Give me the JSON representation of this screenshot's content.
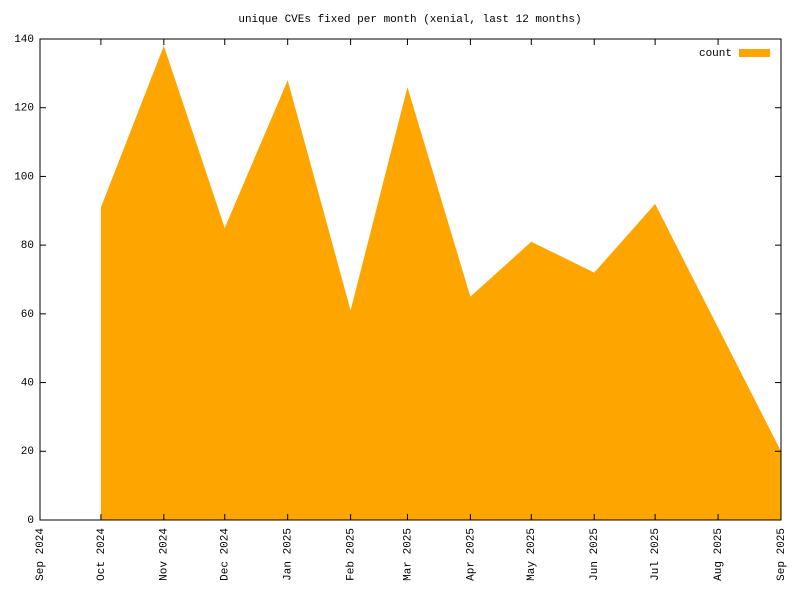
{
  "chart_data": {
    "type": "area",
    "title": "unique CVEs fixed per month (xenial, last 12 months)",
    "x": [
      "2024-10",
      "2024-11",
      "2024-12",
      "2025-01",
      "2025-02",
      "2025-03",
      "2025-04",
      "2025-05",
      "2025-06",
      "2025-07",
      "2025-08",
      "2025-09"
    ],
    "series": [
      {
        "name": "count",
        "color": "#ffa500",
        "values": [
          91,
          138,
          85,
          128,
          61,
          126,
          65,
          81,
          72,
          92,
          56,
          20
        ]
      }
    ],
    "xlim": [
      "2024-09",
      "2025-09"
    ],
    "xticks": [
      {
        "value": "2024-09",
        "label": "Sep 2024"
      },
      {
        "value": "2024-10",
        "label": "Oct 2024"
      },
      {
        "value": "2024-11",
        "label": "Nov 2024"
      },
      {
        "value": "2024-12",
        "label": "Dec 2024"
      },
      {
        "value": "2025-01",
        "label": "Jan 2025"
      },
      {
        "value": "2025-02",
        "label": "Feb 2025"
      },
      {
        "value": "2025-03",
        "label": "Mar 2025"
      },
      {
        "value": "2025-04",
        "label": "Apr 2025"
      },
      {
        "value": "2025-05",
        "label": "May 2025"
      },
      {
        "value": "2025-06",
        "label": "Jun 2025"
      },
      {
        "value": "2025-07",
        "label": "Jul 2025"
      },
      {
        "value": "2025-08",
        "label": "Aug 2025"
      },
      {
        "value": "2025-09",
        "label": "Sep 2025"
      }
    ],
    "ylim": [
      0,
      140
    ],
    "yticks": [
      0,
      20,
      40,
      60,
      80,
      100,
      120,
      140
    ],
    "grid": false,
    "legend": "upper right"
  }
}
